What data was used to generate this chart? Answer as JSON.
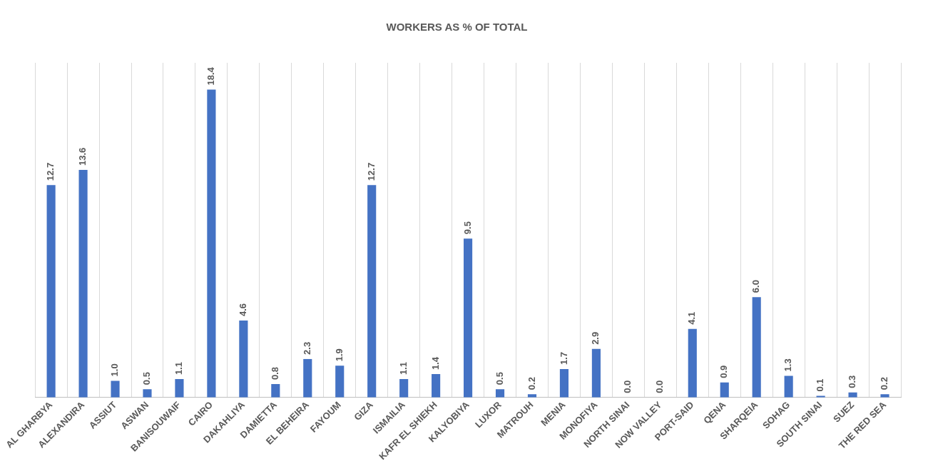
{
  "chart_data": {
    "type": "bar",
    "title": "WORKERS AS % OF TOTAL",
    "categories": [
      "AL GHARBYA",
      "ALEXANDIRA",
      "ASSIUT",
      "ASWAN",
      "BANISOUWAIF",
      "CAIRO",
      "DAKAHLIYA",
      "DAMIETTA",
      "EL BEHEIRA",
      "FAYOUM",
      "GIZA",
      "ISMAILIA",
      "KAFR EL SHIEKH",
      "KALYOBIYA",
      "LUXOR",
      "MATROUH",
      "MENIA",
      "MONOFIYA",
      "NORTH SINAI",
      "NOW VALLEY",
      "PORT-SAID",
      "QENA",
      "SHARQEIA",
      "SOHAG",
      "SOUTH SINAI",
      "SUEZ",
      "THE RED SEA"
    ],
    "values": [
      12.7,
      13.6,
      1.0,
      0.5,
      1.1,
      18.4,
      4.6,
      0.8,
      2.3,
      1.9,
      12.7,
      1.1,
      1.4,
      9.5,
      0.5,
      0.2,
      1.7,
      2.9,
      0.0,
      0.0,
      4.1,
      0.9,
      6.0,
      1.3,
      0.1,
      0.3,
      0.2
    ],
    "value_labels": [
      "12.7",
      "13.6",
      "1.0",
      "0.5",
      "1.1",
      "18.4",
      "4.6",
      "0.8",
      "2.3",
      "1.9",
      "12.7",
      "1.1",
      "1.4",
      "9.5",
      "0.5",
      "0.2",
      "1.7",
      "2.9",
      "0.0",
      "0.0",
      "4.1",
      "0.9",
      "6.0",
      "1.3",
      "0.1",
      "0.3",
      "0.2"
    ],
    "color": "#4472c4",
    "grid": "x",
    "legend": false,
    "tick_labels": "x"
  }
}
